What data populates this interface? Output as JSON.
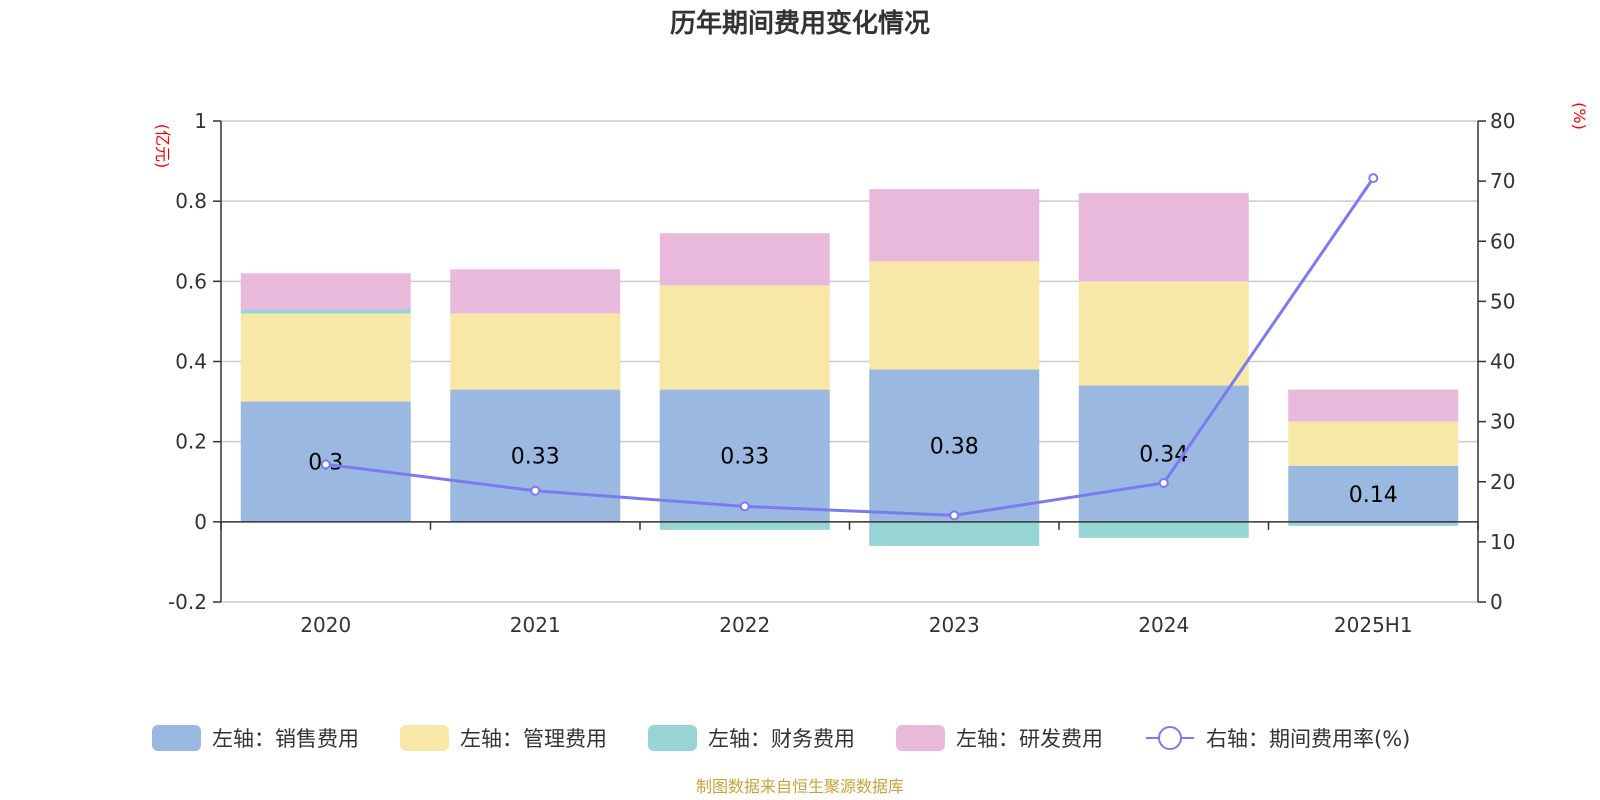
{
  "chart_data": {
    "type": "bar",
    "stacked": true,
    "title": "历年期间费用变化情况",
    "categories": [
      "2020",
      "2021",
      "2022",
      "2023",
      "2024",
      "2025H1"
    ],
    "y_left": {
      "unit": "(亿元)",
      "ylim": [
        -0.2,
        1
      ],
      "ticks": [
        "-0.2",
        "0",
        "0.2",
        "0.4",
        "0.6",
        "0.8",
        "1"
      ]
    },
    "y_right": {
      "unit": "(%)",
      "ylim": [
        0,
        80
      ],
      "ticks": [
        "0",
        "10",
        "20",
        "30",
        "40",
        "50",
        "60",
        "70",
        "80"
      ]
    },
    "series": [
      {
        "name": "左轴：销售费用",
        "color": "#9bb8e1",
        "values": [
          0.3,
          0.33,
          0.33,
          0.38,
          0.34,
          0.14
        ],
        "labels": [
          "0.3",
          "0.33",
          "0.33",
          "0.38",
          "0.34",
          "0.14"
        ]
      },
      {
        "name": "左轴：管理费用",
        "color": "#f8e8a8",
        "values": [
          0.22,
          0.19,
          0.26,
          0.27,
          0.26,
          0.11
        ]
      },
      {
        "name": "左轴：财务费用",
        "color": "#96d5d4",
        "values": [
          0.01,
          0.0,
          -0.02,
          -0.06,
          -0.04,
          -0.01
        ]
      },
      {
        "name": "左轴：研发费用",
        "color": "#e8b9da",
        "values": [
          0.09,
          0.11,
          0.13,
          0.18,
          0.22,
          0.08
        ]
      },
      {
        "name": "右轴：期间费用率(%)",
        "type": "line",
        "axis": "right",
        "color": "#7b7bef",
        "values": [
          22.9,
          18.5,
          15.9,
          14.4,
          19.8,
          70.5
        ]
      }
    ],
    "grid": true,
    "legend_position": "bottom"
  },
  "source_text": "制图数据来自恒生聚源数据库"
}
